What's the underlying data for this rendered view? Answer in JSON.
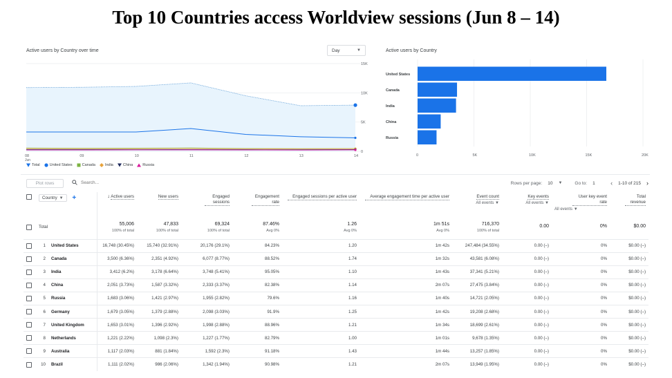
{
  "title": "Top 10 Countries access Worldview sessions (Jun 8 – 14)",
  "line_card": {
    "title": "Active users by Country over time",
    "granularity": "Day",
    "y_ticks": [
      "15K",
      "10K",
      "5K",
      "0"
    ],
    "x_ticks": [
      "08",
      "09",
      "10",
      "11",
      "12",
      "13",
      "14"
    ],
    "x_month": "Jun"
  },
  "legend": [
    {
      "label": "Total",
      "color": "#1a73e8",
      "icon": "total-marker-icon"
    },
    {
      "label": "United States",
      "color": "#1a73e8",
      "icon": "circle-marker-icon"
    },
    {
      "label": "Canada",
      "color": "#7cb342",
      "icon": "square-marker-icon"
    },
    {
      "label": "India",
      "color": "#e8a33c",
      "icon": "diamond-marker-icon"
    },
    {
      "label": "China",
      "color": "#1f2a5c",
      "icon": "down-triangle-marker-icon"
    },
    {
      "label": "Russia",
      "color": "#d81b9b",
      "icon": "triangle-marker-icon"
    }
  ],
  "bar_card": {
    "title": "Active users by Country",
    "x_ticks": [
      "0",
      "5K",
      "10K",
      "15K",
      "20K"
    ]
  },
  "chart_data": [
    {
      "type": "area",
      "title": "Active users by Country over time",
      "x": [
        "08",
        "09",
        "10",
        "11",
        "12",
        "13",
        "14"
      ],
      "ylim": [
        0,
        15000
      ],
      "series": [
        {
          "name": "Total",
          "values": [
            10900,
            10950,
            11100,
            11700,
            9500,
            7800,
            7900
          ]
        },
        {
          "name": "United States",
          "values": [
            3300,
            3300,
            3300,
            3900,
            2900,
            2500,
            2300
          ]
        },
        {
          "name": "Canada",
          "values": [
            550,
            520,
            540,
            560,
            480,
            450,
            460
          ]
        },
        {
          "name": "India",
          "values": [
            480,
            470,
            470,
            500,
            430,
            420,
            450
          ]
        },
        {
          "name": "China",
          "values": [
            300,
            300,
            290,
            300,
            280,
            270,
            300
          ]
        },
        {
          "name": "Russia",
          "values": [
            230,
            230,
            240,
            250,
            230,
            210,
            240
          ]
        }
      ]
    },
    {
      "type": "bar",
      "title": "Active users by Country",
      "categories": [
        "United States",
        "Canada",
        "India",
        "China",
        "Russia"
      ],
      "values": [
        16748,
        3500,
        3412,
        2051,
        1683
      ],
      "xlim": [
        0,
        20000
      ],
      "color": "#1a73e8"
    }
  ],
  "toolbar": {
    "plot_rows": "Plot rows",
    "search_placeholder": "Search...",
    "rows_per_page_label": "Rows per page:",
    "rows_per_page": "10",
    "goto_label": "Go to:",
    "goto_value": "1",
    "range": "1-10 of 215"
  },
  "table": {
    "dimension": "Country",
    "headers": [
      {
        "label": "Active users",
        "sub": ""
      },
      {
        "label": "New users",
        "sub": ""
      },
      {
        "label": "Engaged sessions",
        "sub": ""
      },
      {
        "label": "Engagement rate",
        "sub": ""
      },
      {
        "label": "Engaged sessions per active user",
        "sub": ""
      },
      {
        "label": "Average engagement time per active user",
        "sub": ""
      },
      {
        "label": "Event count",
        "sub": "All events"
      },
      {
        "label": "Key events",
        "sub": "All events"
      },
      {
        "label": "User key event rate",
        "sub": "All events"
      },
      {
        "label": "Total revenue",
        "sub": ""
      }
    ],
    "total": {
      "label": "Total",
      "values": [
        "55,006",
        "47,833",
        "69,324",
        "87.46%",
        "1.26",
        "1m 51s",
        "716,370",
        "0.00",
        "0%",
        "$0.00"
      ],
      "subs": [
        "100% of total",
        "100% of total",
        "100% of total",
        "Avg 0%",
        "Avg 0%",
        "Avg 0%",
        "100% of total",
        "",
        "",
        ""
      ]
    },
    "rows": [
      {
        "rank": "1",
        "country": "United States",
        "cells": [
          "16,748 (30.45%)",
          "15,740 (32.91%)",
          "20,176 (29.1%)",
          "84.23%",
          "1.20",
          "1m 42s",
          "247,484 (34.55%)",
          "0.00 (–)",
          "0%",
          "$0.00 (–)"
        ]
      },
      {
        "rank": "2",
        "country": "Canada",
        "cells": [
          "3,500 (6.36%)",
          "2,351 (4.92%)",
          "6,077 (8.77%)",
          "88.52%",
          "1.74",
          "1m 32s",
          "43,581 (6.08%)",
          "0.00 (–)",
          "0%",
          "$0.00 (–)"
        ]
      },
      {
        "rank": "3",
        "country": "India",
        "cells": [
          "3,412 (6.2%)",
          "3,178 (6.64%)",
          "3,748 (5.41%)",
          "95.05%",
          "1.10",
          "1m 43s",
          "37,341 (5.21%)",
          "0.00 (–)",
          "0%",
          "$0.00 (–)"
        ]
      },
      {
        "rank": "4",
        "country": "China",
        "cells": [
          "2,051 (3.73%)",
          "1,587 (3.32%)",
          "2,333 (3.37%)",
          "82.38%",
          "1.14",
          "2m 07s",
          "27,475 (3.84%)",
          "0.00 (–)",
          "0%",
          "$0.00 (–)"
        ]
      },
      {
        "rank": "5",
        "country": "Russia",
        "cells": [
          "1,683 (3.06%)",
          "1,421 (2.97%)",
          "1,955 (2.82%)",
          "79.6%",
          "1.16",
          "1m 40s",
          "14,721 (2.05%)",
          "0.00 (–)",
          "0%",
          "$0.00 (–)"
        ]
      },
      {
        "rank": "6",
        "country": "Germany",
        "cells": [
          "1,679 (3.05%)",
          "1,379 (2.88%)",
          "2,098 (3.03%)",
          "91.9%",
          "1.25",
          "1m 42s",
          "19,208 (2.68%)",
          "0.00 (–)",
          "0%",
          "$0.00 (–)"
        ]
      },
      {
        "rank": "7",
        "country": "United Kingdom",
        "cells": [
          "1,653 (3.01%)",
          "1,396 (2.92%)",
          "1,998 (2.88%)",
          "88.96%",
          "1.21",
          "1m 34s",
          "18,699 (2.61%)",
          "0.00 (–)",
          "0%",
          "$0.00 (–)"
        ]
      },
      {
        "rank": "8",
        "country": "Netherlands",
        "cells": [
          "1,221 (2.22%)",
          "1,098 (2.3%)",
          "1,227 (1.77%)",
          "82.79%",
          "1.00",
          "1m 01s",
          "9,678 (1.35%)",
          "0.00 (–)",
          "0%",
          "$0.00 (–)"
        ]
      },
      {
        "rank": "9",
        "country": "Australia",
        "cells": [
          "1,117 (2.03%)",
          "881 (1.84%)",
          "1,592 (2.3%)",
          "91.18%",
          "1.43",
          "1m 44s",
          "13,257 (1.85%)",
          "0.00 (–)",
          "0%",
          "$0.00 (–)"
        ]
      },
      {
        "rank": "10",
        "country": "Brazil",
        "cells": [
          "1,111 (2.02%)",
          "986 (2.06%)",
          "1,342 (1.94%)",
          "90.98%",
          "1.21",
          "2m 07s",
          "13,949 (1.95%)",
          "0.00 (–)",
          "0%",
          "$0.00 (–)"
        ]
      }
    ]
  }
}
